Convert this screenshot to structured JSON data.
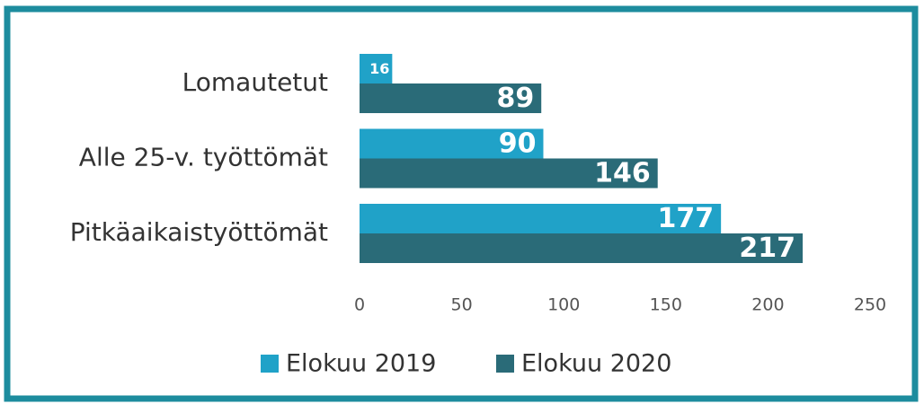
{
  "chart_data": {
    "type": "hbar",
    "categories": [
      "Lomautetut",
      "Alle 25-v. työttömät",
      "Pitkäaikaistyöttömät"
    ],
    "series": [
      {
        "name": "Elokuu 2019",
        "color": "#20a2c8",
        "values": [
          16,
          90,
          177
        ]
      },
      {
        "name": "Elokuu 2020",
        "color": "#2a6b78",
        "values": [
          89,
          146,
          217
        ]
      }
    ],
    "xlim": [
      0,
      250
    ],
    "xticks": [
      0,
      50,
      100,
      150,
      200,
      250
    ],
    "grid": false,
    "legend": "bottom"
  }
}
